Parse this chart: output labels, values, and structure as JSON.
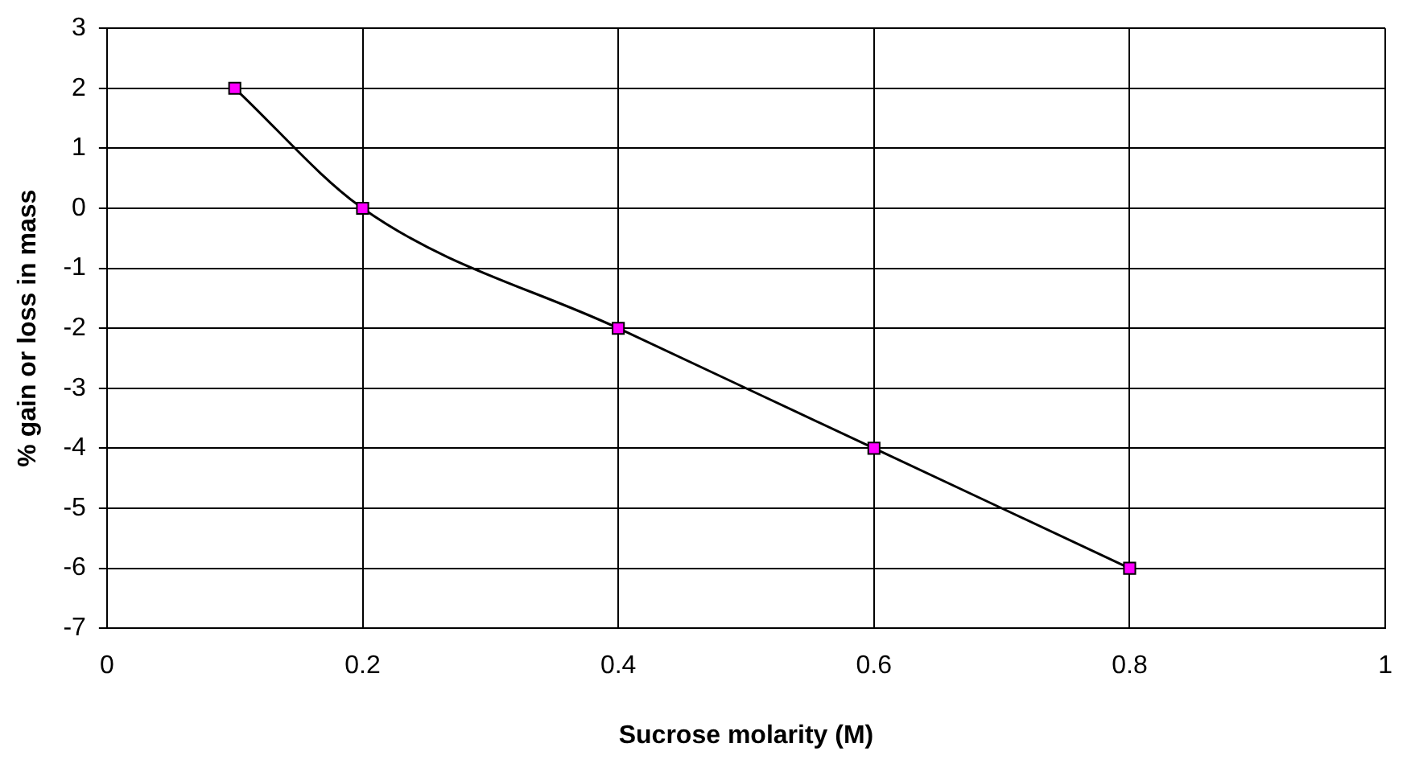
{
  "chart_data": {
    "type": "line",
    "xlabel": "Sucrose molarity (M)",
    "ylabel": "% gain or loss in mass",
    "x": [
      0.1,
      0.2,
      0.4,
      0.6,
      0.8
    ],
    "series": [
      {
        "color": "#000000",
        "values": [
          2,
          0,
          -2,
          -4,
          -6
        ]
      }
    ],
    "marker": "square",
    "line_style": "solid",
    "grid": true,
    "legend": false,
    "xlim": [
      0,
      1
    ],
    "xticks": [
      0,
      0.2,
      0.4,
      0.6,
      0.8,
      1
    ],
    "ylim": [
      -7,
      3
    ],
    "yticks": [
      -7,
      -6,
      -5,
      -4,
      -3,
      -2,
      -1,
      0,
      1,
      2,
      3
    ]
  }
}
